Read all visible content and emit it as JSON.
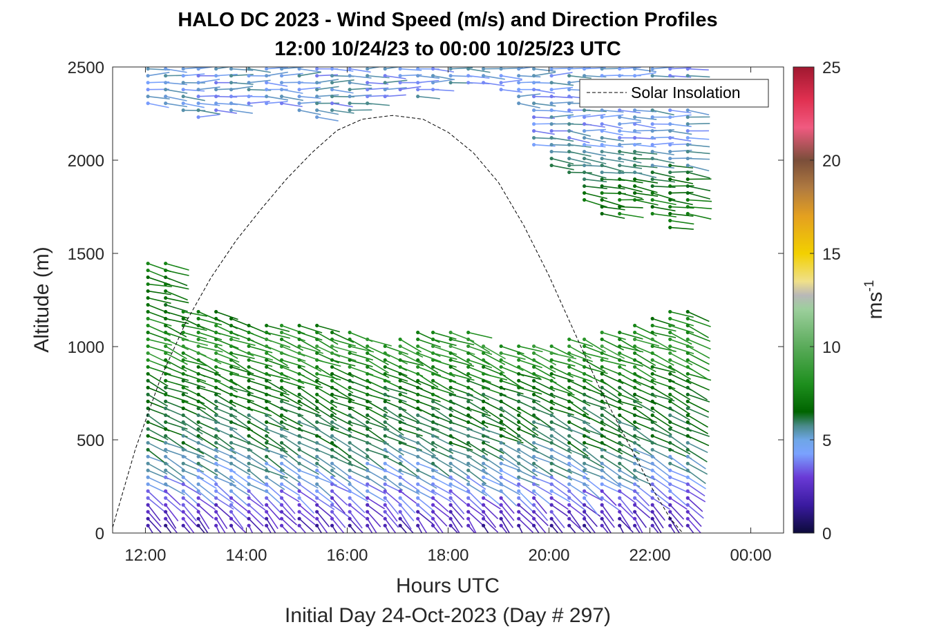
{
  "chart_data": {
    "type": "wind-barb-profile",
    "title_line1": "HALO DC 2023 - Wind Speed (m/s) and Direction Profiles",
    "title_line2": "12:00 10/24/23 to 00:00 10/25/23  UTC",
    "xlabel": "Hours UTC",
    "xsublabel": "Initial Day 24-Oct-2023 (Day # 297)",
    "ylabel": "Altitude (m)",
    "colorbar_label": "ms",
    "colorbar_label_exp": "-1",
    "xlim": [
      11.35,
      24.65
    ],
    "ylim": [
      0,
      2500
    ],
    "xticks": [
      12,
      14,
      16,
      18,
      20,
      22,
      24
    ],
    "xtick_labels": [
      "12:00",
      "14:00",
      "16:00",
      "18:00",
      "20:00",
      "22:00",
      "00:00"
    ],
    "yticks": [
      0,
      500,
      1000,
      1500,
      2000,
      2500
    ],
    "ytick_labels": [
      "0",
      "500",
      "1000",
      "1500",
      "2000",
      "2500"
    ],
    "colorbar_range": [
      0,
      25
    ],
    "colorbar_ticks": [
      0,
      5,
      10,
      15,
      20,
      25
    ],
    "colorbar_tick_labels": [
      "0",
      "5",
      "10",
      "15",
      "20",
      "25"
    ],
    "legend": {
      "entry": "Solar Insolation",
      "position": "top-right"
    },
    "solar_insolation": {
      "x": [
        11.35,
        11.8,
        12.3,
        12.8,
        13.3,
        13.8,
        14.3,
        14.8,
        15.3,
        15.8,
        16.3,
        16.9,
        17.5,
        18.0,
        18.5,
        19.0,
        19.5,
        20.0,
        20.5,
        21.0,
        21.5,
        22.0,
        22.4,
        22.65,
        24.65
      ],
      "y": [
        30,
        450,
        830,
        1130,
        1370,
        1570,
        1740,
        1900,
        2040,
        2160,
        2220,
        2240,
        2220,
        2150,
        2040,
        1880,
        1650,
        1380,
        1080,
        780,
        520,
        260,
        80,
        0,
        0
      ]
    },
    "profiles": {
      "times": [
        12.05,
        12.4,
        12.75,
        13.05,
        13.4,
        13.7,
        14.05,
        14.4,
        14.7,
        15.05,
        15.4,
        15.7,
        16.05,
        16.4,
        16.75,
        17.05,
        17.4,
        17.7,
        18.05,
        18.4,
        18.7,
        19.05,
        19.4,
        19.7,
        20.05,
        20.4,
        20.7,
        21.05,
        21.4,
        21.7,
        22.05,
        22.4,
        22.75
      ],
      "lower_top": [
        1460,
        1460,
        1200,
        1200,
        1200,
        1160,
        1140,
        1140,
        1130,
        1130,
        1120,
        1100,
        1080,
        1050,
        1030,
        1060,
        1090,
        1100,
        1100,
        1080,
        1030,
        1010,
        1010,
        1020,
        1030,
        1040,
        1050,
        1080,
        1100,
        1140,
        1170,
        1190,
        1220
      ],
      "upper_bottom": [
        2300,
        2300,
        2260,
        2220,
        2260,
        2260,
        2300,
        2280,
        2300,
        2260,
        2220,
        2260,
        2260,
        2280,
        2340,
        2360,
        2340,
        2360,
        2400,
        2400,
        2380,
        2360,
        2300,
        2080,
        1960,
        1920,
        1780,
        1700,
        1700,
        1780,
        1700,
        1620,
        1700
      ],
      "speed_profile_ms": {
        "altitude_m": [
          0,
          100,
          200,
          300,
          500,
          800,
          1000,
          1200,
          1500,
          1800,
          2100,
          2500
        ],
        "speed_ms": [
          1.5,
          2.5,
          3.5,
          4.5,
          5.8,
          6.8,
          8.5,
          7.0,
          7.0,
          7.0,
          4.5,
          4.5
        ]
      }
    }
  }
}
